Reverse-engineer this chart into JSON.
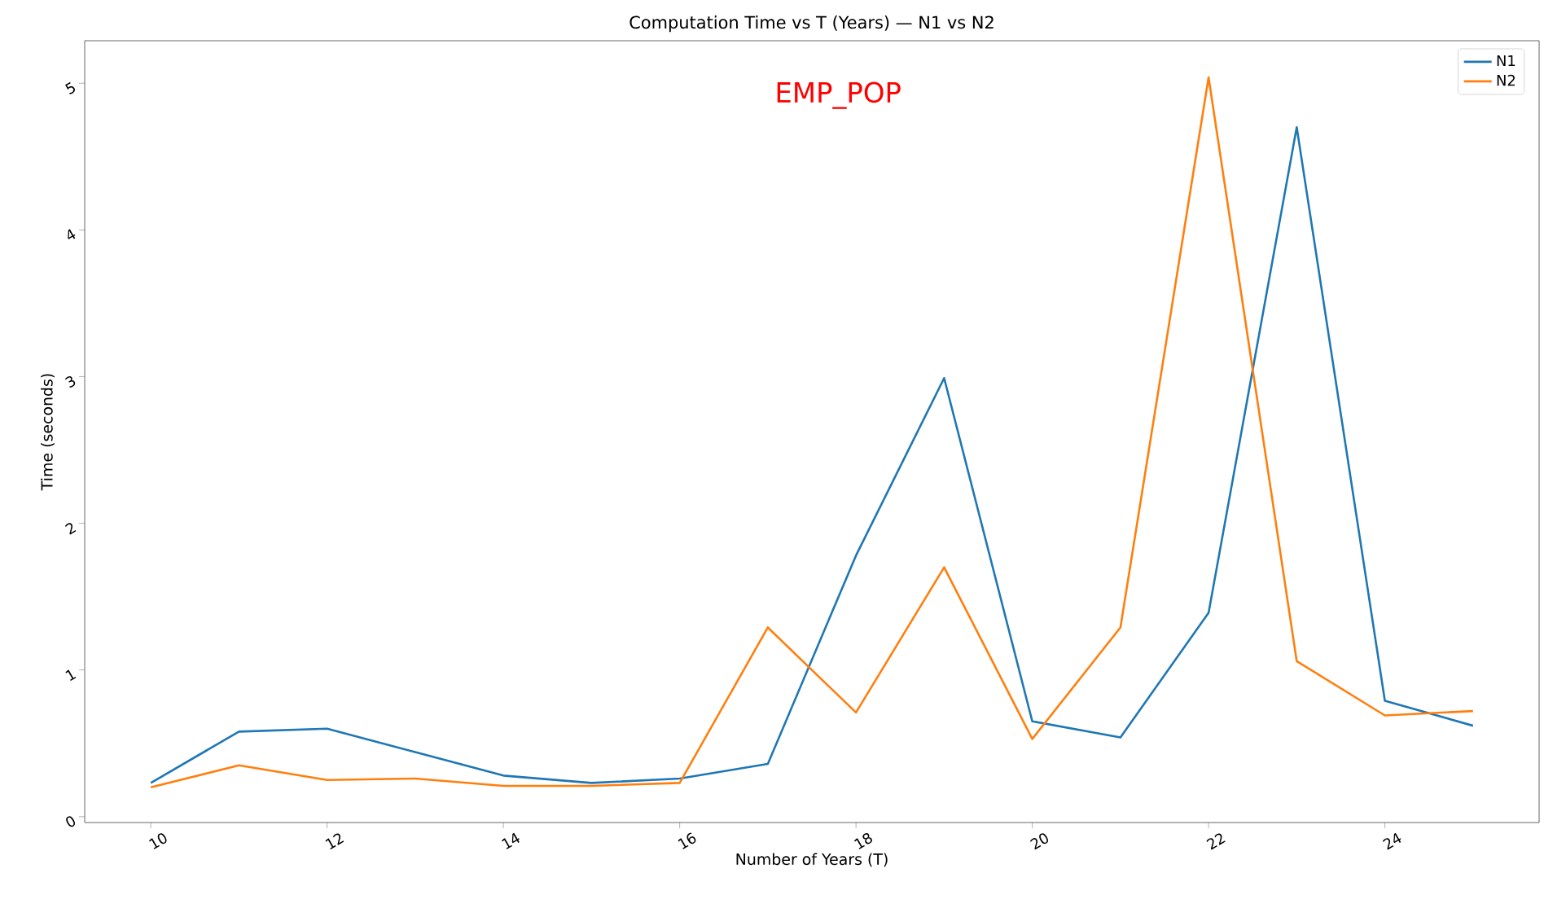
{
  "chart_data": {
    "type": "line",
    "title": "Computation Time vs T (Years) — N1 vs N2",
    "xlabel": "Number of Years (T)",
    "ylabel": "Time (seconds)",
    "annotations": [
      "EMP_POP"
    ],
    "x": [
      10,
      11,
      12,
      13,
      14,
      15,
      16,
      17,
      18,
      19,
      20,
      21,
      22,
      23,
      24,
      25
    ],
    "series": [
      {
        "name": "N1",
        "color": "#1f77b4",
        "values": [
          0.23,
          0.58,
          0.6,
          0.44,
          0.28,
          0.23,
          0.26,
          0.36,
          1.78,
          2.99,
          0.65,
          0.54,
          1.39,
          4.7,
          0.79,
          0.62
        ]
      },
      {
        "name": "N2",
        "color": "#ff7f0e",
        "values": [
          0.2,
          0.35,
          0.25,
          0.26,
          0.21,
          0.21,
          0.23,
          1.29,
          0.71,
          1.7,
          0.53,
          1.29,
          5.04,
          1.06,
          0.69,
          0.72
        ]
      }
    ],
    "xlim": [
      9.25,
      25.75
    ],
    "ylim": [
      -0.04,
      5.29
    ],
    "xticks": [
      10,
      12,
      14,
      16,
      18,
      20,
      22,
      24
    ],
    "yticks": [
      0,
      1,
      2,
      3,
      4,
      5
    ],
    "legend": "top right",
    "grid": false,
    "marker": "none",
    "line_style": "solid"
  }
}
